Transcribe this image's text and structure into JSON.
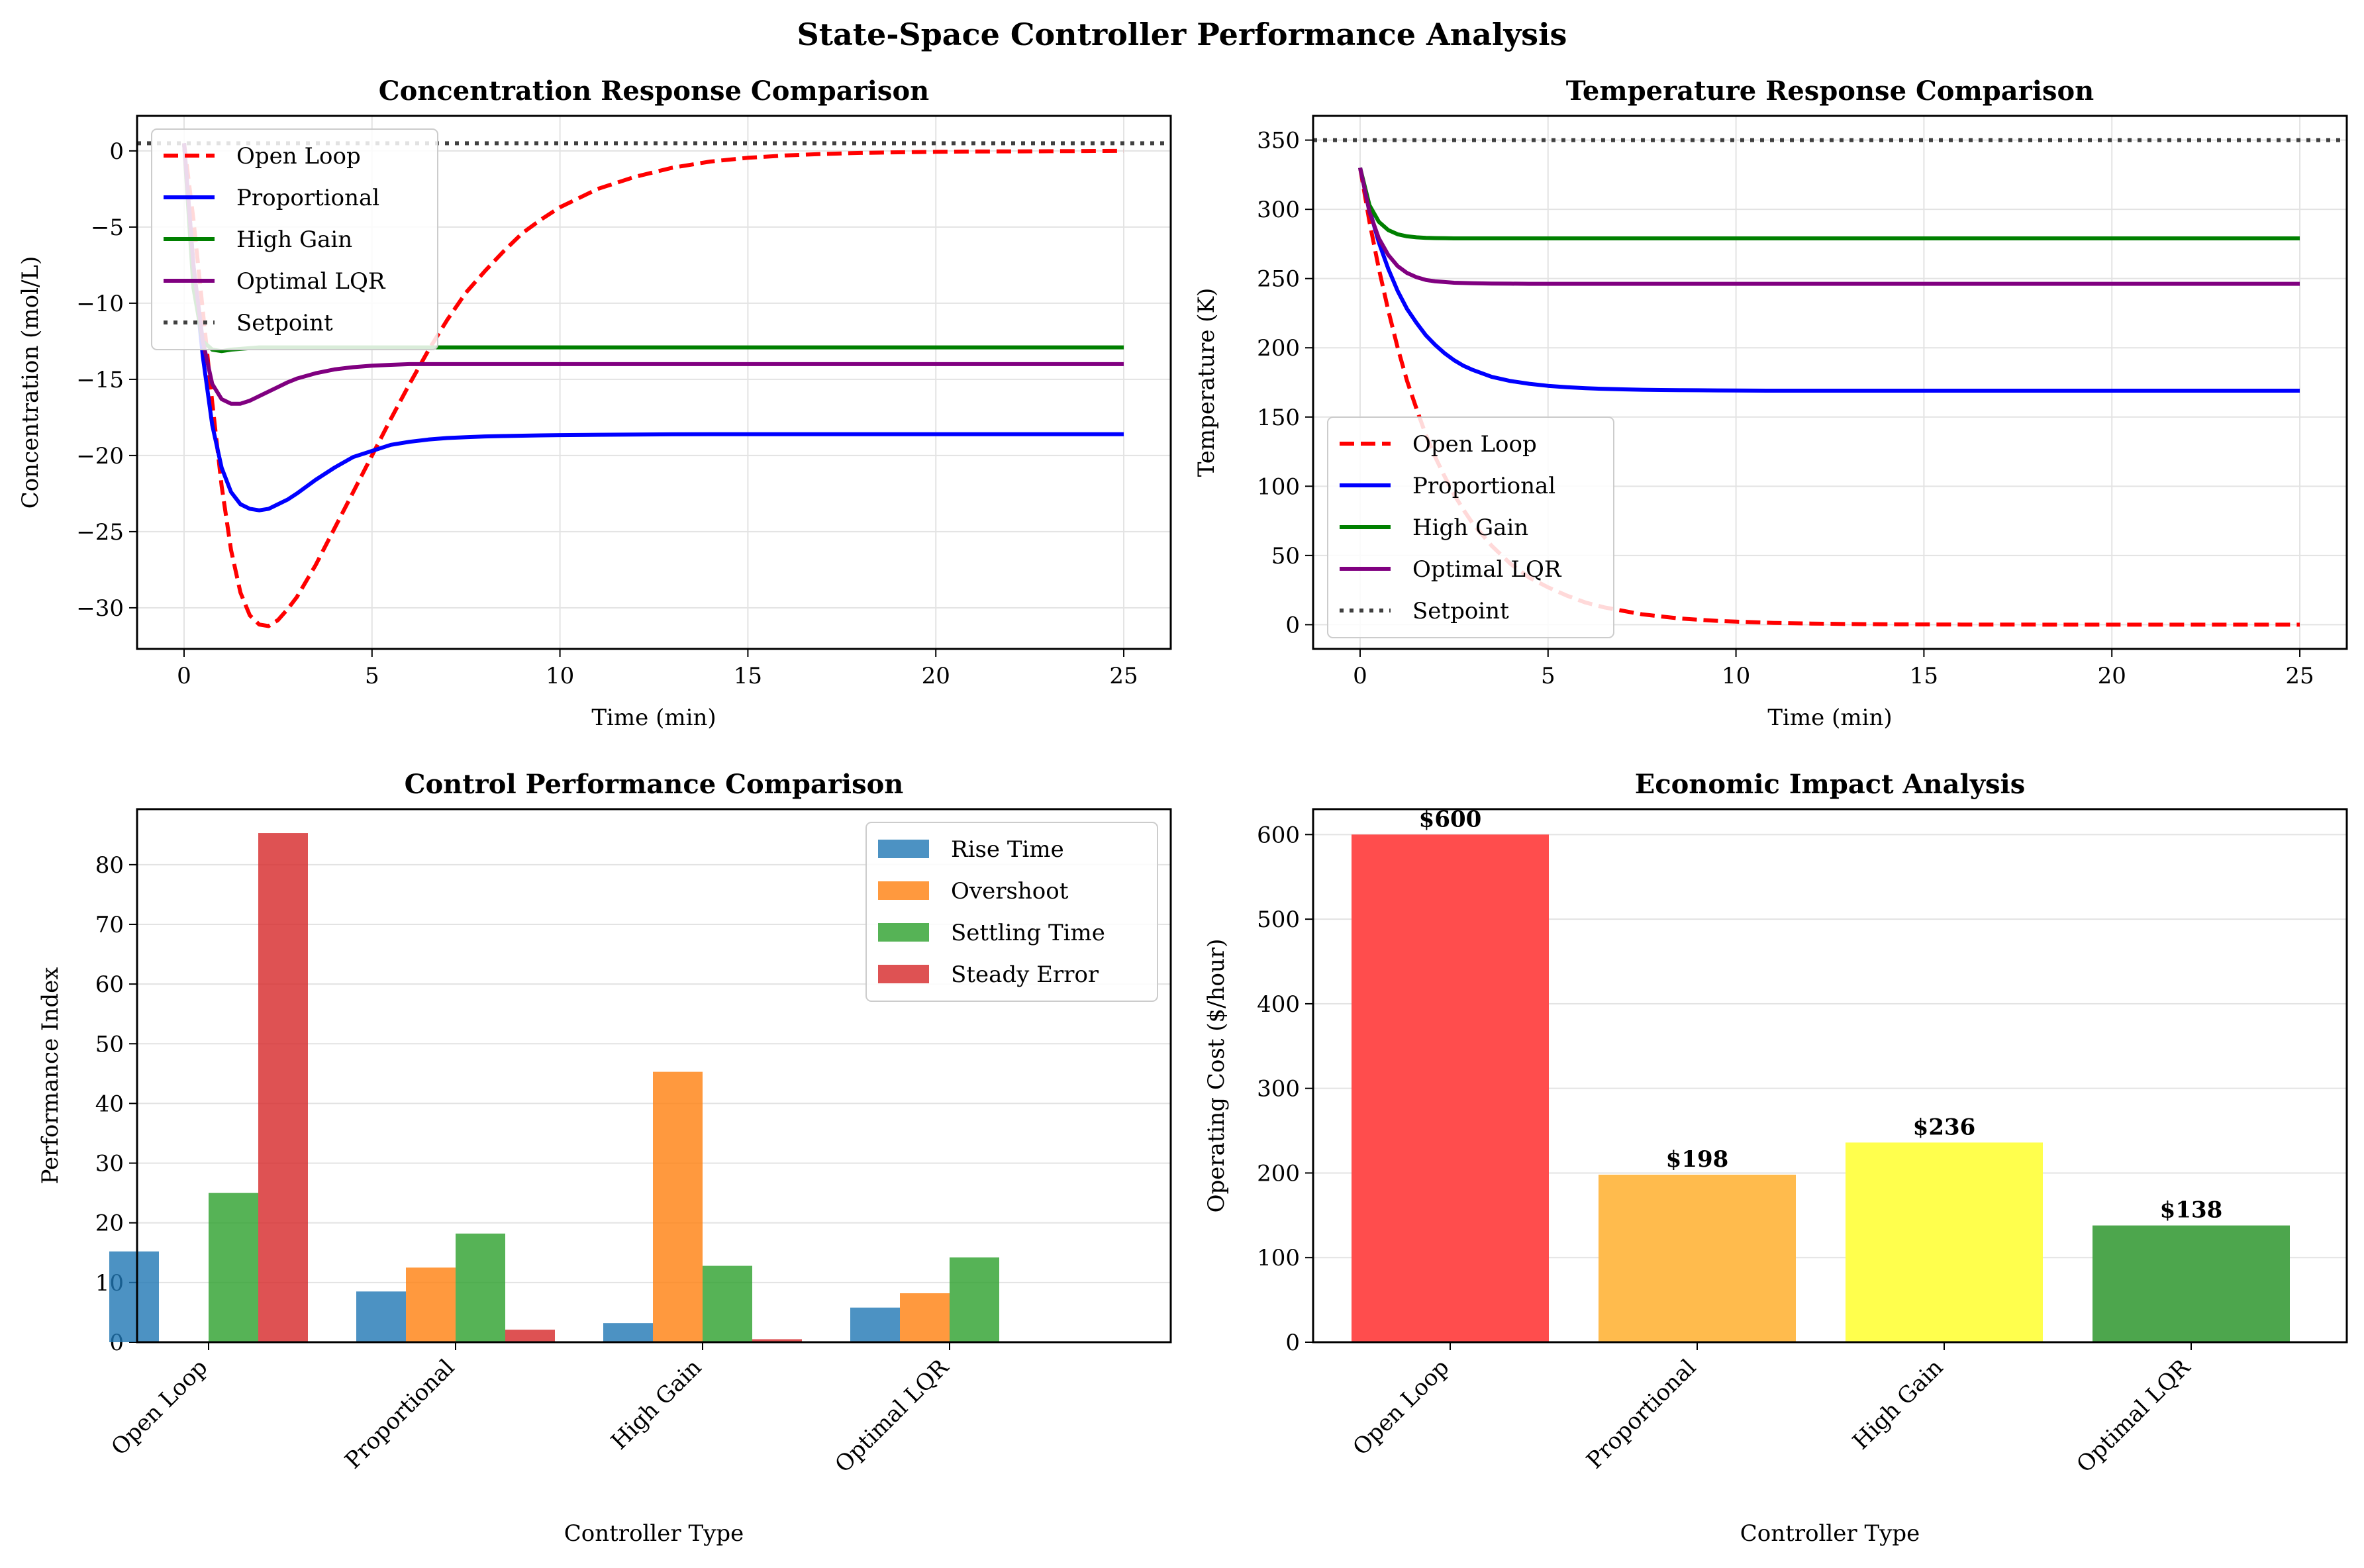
{
  "figure": {
    "title": "State-Space Controller Performance Analysis"
  },
  "chart_data": [
    {
      "id": "concentration",
      "type": "line",
      "title": "Concentration Response Comparison",
      "xlabel": "Time (min)",
      "ylabel": "Concentration (mol/L)",
      "xlim": [
        -1.25,
        26.25
      ],
      "ylim": [
        -32.7,
        2.3
      ],
      "xticks": [
        0,
        5,
        10,
        15,
        20,
        25
      ],
      "yticks": [
        0,
        -5,
        -10,
        -15,
        -20,
        -25,
        -30
      ],
      "ytick_labels": [
        "0",
        "−5",
        "−10",
        "−15",
        "−20",
        "−25",
        "−30"
      ],
      "grid": true,
      "legend_position": "upper left",
      "setpoint": 0.5,
      "x": [
        0,
        0.25,
        0.5,
        0.75,
        1,
        1.25,
        1.5,
        1.75,
        2,
        2.25,
        2.5,
        2.75,
        3,
        3.5,
        4,
        4.5,
        5,
        5.5,
        6,
        6.5,
        7,
        7.5,
        8,
        8.5,
        9,
        9.5,
        10,
        11,
        12,
        13,
        14,
        15,
        16,
        17,
        18,
        19,
        20,
        21,
        22,
        23,
        24,
        25
      ],
      "series": [
        {
          "name": "Open Loop",
          "color": "#ff0000",
          "style": "dashed",
          "values": [
            0.5,
            -4.5,
            -10.5,
            -16.5,
            -22.0,
            -26.2,
            -29.0,
            -30.5,
            -31.1,
            -31.2,
            -30.8,
            -30.1,
            -29.3,
            -27.2,
            -24.8,
            -22.4,
            -20.0,
            -17.6,
            -15.3,
            -13.1,
            -11.1,
            -9.3,
            -7.9,
            -6.6,
            -5.4,
            -4.5,
            -3.7,
            -2.5,
            -1.7,
            -1.1,
            -0.7,
            -0.45,
            -0.3,
            -0.2,
            -0.13,
            -0.09,
            -0.06,
            -0.04,
            -0.03,
            -0.02,
            -0.01,
            0.0
          ]
        },
        {
          "name": "Proportional",
          "color": "#0000ff",
          "style": "solid",
          "values": [
            0.5,
            -7.5,
            -13.5,
            -18.0,
            -20.8,
            -22.4,
            -23.2,
            -23.5,
            -23.6,
            -23.5,
            -23.2,
            -22.9,
            -22.5,
            -21.6,
            -20.8,
            -20.1,
            -19.7,
            -19.3,
            -19.1,
            -18.95,
            -18.85,
            -18.8,
            -18.75,
            -18.72,
            -18.7,
            -18.68,
            -18.66,
            -18.64,
            -18.62,
            -18.61,
            -18.6,
            -18.6,
            -18.6,
            -18.6,
            -18.6,
            -18.6,
            -18.6,
            -18.6,
            -18.6,
            -18.6,
            -18.6,
            -18.6
          ]
        },
        {
          "name": "High Gain",
          "color": "#008000",
          "style": "solid",
          "values": [
            0.5,
            -9.0,
            -12.5,
            -13.05,
            -13.15,
            -13.05,
            -13.0,
            -12.95,
            -12.9,
            -12.9,
            -12.9,
            -12.9,
            -12.9,
            -12.9,
            -12.9,
            -12.9,
            -12.9,
            -12.9,
            -12.9,
            -12.9,
            -12.9,
            -12.9,
            -12.9,
            -12.9,
            -12.9,
            -12.9,
            -12.9,
            -12.9,
            -12.9,
            -12.9,
            -12.9,
            -12.9,
            -12.9,
            -12.9,
            -12.9,
            -12.9,
            -12.9,
            -12.9,
            -12.9,
            -12.9,
            -12.9,
            -12.9
          ]
        },
        {
          "name": "Optimal LQR",
          "color": "#800080",
          "style": "solid",
          "values": [
            0.5,
            -7.5,
            -12.5,
            -15.3,
            -16.3,
            -16.6,
            -16.6,
            -16.4,
            -16.1,
            -15.8,
            -15.5,
            -15.2,
            -14.95,
            -14.6,
            -14.35,
            -14.2,
            -14.1,
            -14.05,
            -14.0,
            -14.0,
            -14.0,
            -14.0,
            -14.0,
            -14.0,
            -14.0,
            -14.0,
            -14.0,
            -14.0,
            -14.0,
            -14.0,
            -14.0,
            -14.0,
            -14.0,
            -14.0,
            -14.0,
            -14.0,
            -14.0,
            -14.0,
            -14.0,
            -14.0,
            -14.0,
            -14.0
          ]
        },
        {
          "name": "Setpoint",
          "color": "#404040",
          "style": "dotted"
        }
      ]
    },
    {
      "id": "temperature",
      "type": "line",
      "title": "Temperature Response Comparison",
      "xlabel": "Time (min)",
      "ylabel": "Temperature (K)",
      "xlim": [
        -1.25,
        26.25
      ],
      "ylim": [
        -17.5,
        367.5
      ],
      "xticks": [
        0,
        5,
        10,
        15,
        20,
        25
      ],
      "yticks": [
        0,
        50,
        100,
        150,
        200,
        250,
        300,
        350
      ],
      "ytick_labels": [
        "0",
        "50",
        "100",
        "150",
        "200",
        "250",
        "300",
        "350"
      ],
      "grid": true,
      "legend_position": "center left",
      "setpoint": 350,
      "x": [
        0,
        0.25,
        0.5,
        0.75,
        1,
        1.25,
        1.5,
        1.75,
        2,
        2.25,
        2.5,
        2.75,
        3,
        3.5,
        4,
        4.5,
        5,
        5.5,
        6,
        6.5,
        7,
        7.5,
        8,
        8.5,
        9,
        9.5,
        10,
        11,
        12,
        13,
        14,
        15,
        16,
        17,
        18,
        19,
        20,
        21,
        22,
        23,
        24,
        25
      ],
      "series": [
        {
          "name": "Open Loop",
          "color": "#ff0000",
          "style": "dashed",
          "values": [
            330,
            291,
            257,
            227,
            200,
            176,
            156,
            137,
            121,
            107,
            94,
            83,
            73,
            57,
            44,
            34,
            27,
            21,
            16,
            12.5,
            10,
            7.5,
            6,
            4.5,
            3.6,
            2.8,
            2.2,
            1.3,
            0.8,
            0.5,
            0.3,
            0.2,
            0.1,
            0.1,
            0.05,
            0,
            0,
            0,
            0,
            0,
            0,
            0
          ]
        },
        {
          "name": "Proportional",
          "color": "#0000ff",
          "style": "solid",
          "values": [
            330,
            300,
            276,
            257,
            241,
            228,
            218,
            209,
            202,
            196,
            191,
            187,
            184,
            179,
            176,
            174,
            172.5,
            171.5,
            170.8,
            170.3,
            170,
            169.7,
            169.5,
            169.4,
            169.3,
            169.2,
            169.1,
            169,
            169,
            169,
            169,
            169,
            169,
            169,
            169,
            169,
            169,
            169,
            169,
            169,
            169,
            169
          ]
        },
        {
          "name": "High Gain",
          "color": "#008000",
          "style": "solid",
          "values": [
            330,
            303,
            291,
            285,
            282,
            280.5,
            279.8,
            279.4,
            279.2,
            279.1,
            279,
            279,
            279,
            279,
            279,
            279,
            279,
            279,
            279,
            279,
            279,
            279,
            279,
            279,
            279,
            279,
            279,
            279,
            279,
            279,
            279,
            279,
            279,
            279,
            279,
            279,
            279,
            279,
            279,
            279,
            279,
            279
          ]
        },
        {
          "name": "Optimal LQR",
          "color": "#800080",
          "style": "solid",
          "values": [
            330,
            298,
            279,
            267,
            259,
            254,
            251,
            249,
            248,
            247.5,
            247,
            246.8,
            246.6,
            246.4,
            246.3,
            246.2,
            246.2,
            246.2,
            246.2,
            246.2,
            246.2,
            246.2,
            246.2,
            246.2,
            246.2,
            246.2,
            246.2,
            246.2,
            246.2,
            246.2,
            246.2,
            246.2,
            246.2,
            246.2,
            246.2,
            246.2,
            246.2,
            246.2,
            246.2,
            246.2,
            246.2,
            246.2
          ]
        },
        {
          "name": "Setpoint",
          "color": "#404040",
          "style": "dotted"
        }
      ]
    },
    {
      "id": "performance",
      "type": "bar",
      "title": "Control Performance Comparison",
      "xlabel": "Controller Type",
      "ylabel": "Performance Index",
      "ylim": [
        0,
        89.3
      ],
      "yticks": [
        0,
        10,
        20,
        30,
        40,
        50,
        60,
        70,
        80
      ],
      "grid": true,
      "legend_position": "upper right",
      "categories": [
        "Open Loop",
        "Proportional",
        "High Gain",
        "Optimal LQR"
      ],
      "series": [
        {
          "name": "Rise Time",
          "color": "#1f77b4",
          "values": [
            15.2,
            8.5,
            3.2,
            5.8
          ]
        },
        {
          "name": "Overshoot",
          "color": "#ff7f0e",
          "values": [
            0,
            12.5,
            45.3,
            8.2
          ]
        },
        {
          "name": "Settling Time",
          "color": "#2ca02c",
          "values": [
            25.0,
            18.2,
            12.8,
            14.2
          ]
        },
        {
          "name": "Steady Error",
          "color": "#d62728",
          "values": [
            85.3,
            2.1,
            0.5,
            0
          ]
        }
      ]
    },
    {
      "id": "economic",
      "type": "bar",
      "title": "Economic Impact Analysis",
      "xlabel": "Controller Type",
      "ylabel": "Operating Cost ($/hour)",
      "ylim": [
        0,
        630
      ],
      "yticks": [
        0,
        100,
        200,
        300,
        400,
        500,
        600
      ],
      "grid": true,
      "categories": [
        "Open Loop",
        "Proportional",
        "High Gain",
        "Optimal LQR"
      ],
      "values": [
        600,
        198,
        236,
        138
      ],
      "value_labels": [
        "$600",
        "$198",
        "$236",
        "$138"
      ],
      "colors": [
        "#ff4d4d",
        "#ffbb4d",
        "#ffff4d",
        "#4da64d"
      ]
    }
  ]
}
